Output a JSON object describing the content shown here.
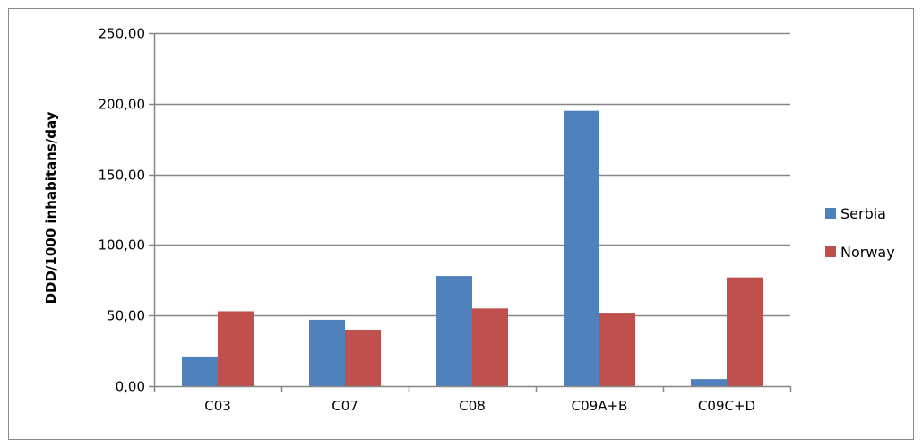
{
  "chart_data": {
    "type": "bar",
    "categories": [
      "C03",
      "C07",
      "C08",
      "C09A+B",
      "C09C+D"
    ],
    "series": [
      {
        "name": "Serbia",
        "color": "#4F81BD",
        "values": [
          21.0,
          47.0,
          78.0,
          195.0,
          5.0
        ]
      },
      {
        "name": "Norway",
        "color": "#C0504D",
        "values": [
          53.0,
          40.0,
          55.0,
          52.0,
          77.0
        ]
      }
    ],
    "ylabel": "DDD/1000 inhabitans/day",
    "xlabel": "",
    "ylim": [
      0,
      250
    ],
    "yticks": [
      0,
      50,
      100,
      150,
      200,
      250
    ],
    "ytick_labels": [
      "0,00",
      "50,00",
      "100,00",
      "150,00",
      "200,00",
      "250,00"
    ],
    "grid": true,
    "legend_position": "right"
  }
}
